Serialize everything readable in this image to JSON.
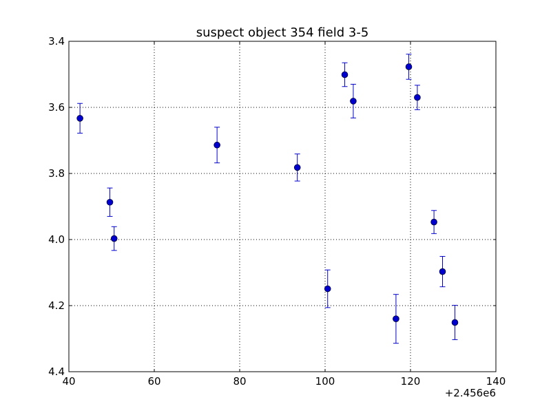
{
  "chart_data": {
    "type": "scatter",
    "title": "suspect object 354 field 3-5",
    "xlabel": "",
    "ylabel": "",
    "x_offset_label": "+2.456e6",
    "xlim": [
      40,
      140
    ],
    "ylim": [
      4.4,
      3.4
    ],
    "y_inverted": true,
    "grid": true,
    "grid_style": "dotted",
    "x_ticks": [
      "40",
      "60",
      "80",
      "100",
      "120",
      "140"
    ],
    "y_ticks": [
      "3.4",
      "3.6",
      "3.8",
      "4.0",
      "4.2",
      "4.4"
    ],
    "marker_color": "#0000cc",
    "errorbar_color": "#0000cc",
    "points": [
      {
        "x": 42.6,
        "y": 3.633,
        "yerr": 0.045
      },
      {
        "x": 49.6,
        "y": 3.887,
        "yerr": 0.043
      },
      {
        "x": 50.6,
        "y": 3.997,
        "yerr": 0.036
      },
      {
        "x": 74.7,
        "y": 3.714,
        "yerr": 0.054
      },
      {
        "x": 93.5,
        "y": 3.782,
        "yerr": 0.041
      },
      {
        "x": 100.6,
        "y": 4.149,
        "yerr": 0.057
      },
      {
        "x": 104.6,
        "y": 3.501,
        "yerr": 0.036
      },
      {
        "x": 106.6,
        "y": 3.581,
        "yerr": 0.051
      },
      {
        "x": 116.6,
        "y": 4.24,
        "yerr": 0.074
      },
      {
        "x": 119.6,
        "y": 3.477,
        "yerr": 0.038
      },
      {
        "x": 121.6,
        "y": 3.57,
        "yerr": 0.037
      },
      {
        "x": 125.5,
        "y": 3.947,
        "yerr": 0.035
      },
      {
        "x": 127.5,
        "y": 4.097,
        "yerr": 0.046
      },
      {
        "x": 130.4,
        "y": 4.251,
        "yerr": 0.052
      }
    ]
  }
}
